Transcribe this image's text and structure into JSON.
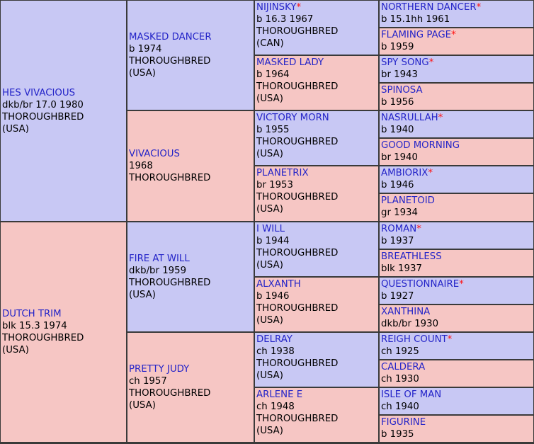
{
  "pedigree": {
    "g1": [
      {
        "name": "HES VIVACIOUS",
        "star": false,
        "lines": [
          "dkb/br 17.0 1980",
          "THOROUGHBRED",
          "(USA)"
        ]
      },
      {
        "name": "DUTCH TRIM",
        "star": false,
        "lines": [
          "blk 15.3 1974",
          "THOROUGHBRED",
          "(USA)"
        ]
      }
    ],
    "g2": [
      {
        "name": "MASKED DANCER",
        "star": false,
        "lines": [
          "b 1974",
          "THOROUGHBRED",
          "(USA)"
        ]
      },
      {
        "name": "VIVACIOUS",
        "star": false,
        "lines": [
          "1968",
          "THOROUGHBRED"
        ]
      },
      {
        "name": "FIRE AT WILL",
        "star": false,
        "lines": [
          "dkb/br 1959",
          "THOROUGHBRED",
          "(USA)"
        ]
      },
      {
        "name": "PRETTY JUDY",
        "star": false,
        "lines": [
          "ch 1957",
          "THOROUGHBRED",
          "(USA)"
        ]
      }
    ],
    "g3": [
      {
        "name": "NIJINSKY",
        "star": true,
        "lines": [
          "b 16.3 1967",
          "THOROUGHBRED",
          "(CAN)"
        ]
      },
      {
        "name": "MASKED LADY",
        "star": false,
        "lines": [
          "b 1964",
          "THOROUGHBRED",
          "(USA)"
        ]
      },
      {
        "name": "VICTORY MORN",
        "star": false,
        "lines": [
          "b 1955",
          "THOROUGHBRED",
          "(USA)"
        ]
      },
      {
        "name": "PLANETRIX",
        "star": false,
        "lines": [
          "br 1953",
          "THOROUGHBRED",
          "(USA)"
        ]
      },
      {
        "name": "I WILL",
        "star": false,
        "lines": [
          "b 1944",
          "THOROUGHBRED",
          "(USA)"
        ]
      },
      {
        "name": "ALXANTH",
        "star": false,
        "lines": [
          "b 1946",
          "THOROUGHBRED",
          "(USA)"
        ]
      },
      {
        "name": "DELRAY",
        "star": false,
        "lines": [
          "ch 1938",
          "THOROUGHBRED",
          "(USA)"
        ]
      },
      {
        "name": "ARLENE E",
        "star": false,
        "lines": [
          "ch 1948",
          "THOROUGHBRED",
          "(USA)"
        ]
      }
    ],
    "g4": [
      {
        "name": "NORTHERN DANCER",
        "star": true,
        "lines": [
          "b 15.1hh 1961"
        ]
      },
      {
        "name": "FLAMING PAGE",
        "star": true,
        "lines": [
          "b 1959"
        ]
      },
      {
        "name": "SPY SONG",
        "star": true,
        "lines": [
          "br 1943"
        ]
      },
      {
        "name": "SPINOSA",
        "star": false,
        "lines": [
          "b 1956"
        ]
      },
      {
        "name": "NASRULLAH",
        "star": true,
        "lines": [
          "b 1940"
        ]
      },
      {
        "name": "GOOD MORNING",
        "star": false,
        "lines": [
          "br 1940"
        ]
      },
      {
        "name": "AMBIORIX",
        "star": true,
        "lines": [
          "b 1946"
        ]
      },
      {
        "name": "PLANETOID",
        "star": false,
        "lines": [
          "gr 1934"
        ]
      },
      {
        "name": "ROMAN",
        "star": true,
        "lines": [
          "b 1937"
        ]
      },
      {
        "name": "BREATHLESS",
        "star": false,
        "lines": [
          "blk 1937"
        ]
      },
      {
        "name": "QUESTIONNAIRE",
        "star": true,
        "lines": [
          "b 1927"
        ]
      },
      {
        "name": "XANTHINA",
        "star": false,
        "lines": [
          "dkb/br 1930"
        ]
      },
      {
        "name": "REIGH COUNT",
        "star": true,
        "lines": [
          "ch 1925"
        ]
      },
      {
        "name": "CALDERA",
        "star": false,
        "lines": [
          "ch 1930"
        ]
      },
      {
        "name": "ISLE OF MAN",
        "star": false,
        "lines": [
          "ch 1940"
        ]
      },
      {
        "name": "FIGURINE",
        "star": false,
        "lines": [
          "b 1935"
        ]
      }
    ],
    "star_mark": "*",
    "colors": {
      "sire": "#c8c8f4",
      "dam": "#f6c6c4",
      "name": "#2424c8",
      "star": "#ff1010",
      "border": "#3a3a3a"
    }
  }
}
